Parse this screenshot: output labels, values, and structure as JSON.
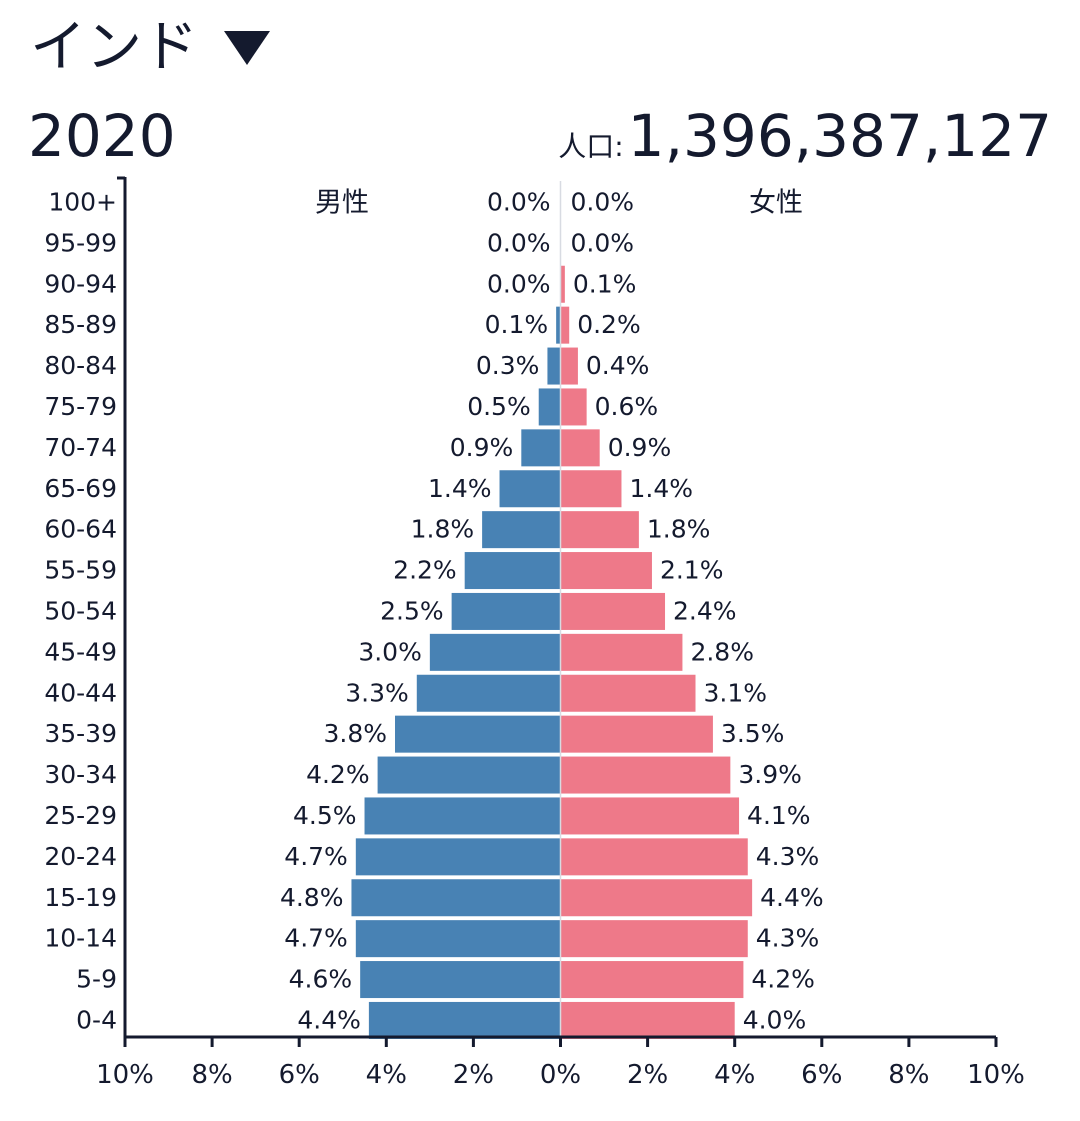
{
  "header": {
    "country": "インド",
    "year": "2020",
    "population_label": "人口:",
    "population_value": "1,396,387,127",
    "dropdown_icon": "triangle-down-icon"
  },
  "colors": {
    "male": "#4882b4",
    "female": "#ee7989",
    "text": "#141a2e"
  },
  "chart_data": {
    "type": "bar",
    "orientation": "horizontal-population-pyramid",
    "categories": [
      "100+",
      "95-99",
      "90-94",
      "85-89",
      "80-84",
      "75-79",
      "70-74",
      "65-69",
      "60-64",
      "55-59",
      "50-54",
      "45-49",
      "40-44",
      "35-39",
      "30-34",
      "25-29",
      "20-24",
      "15-19",
      "10-14",
      "5-9",
      "0-4"
    ],
    "series": [
      {
        "name": "男性",
        "values": [
          0.0,
          0.0,
          0.0,
          0.1,
          0.3,
          0.5,
          0.9,
          1.4,
          1.8,
          2.2,
          2.5,
          3.0,
          3.3,
          3.8,
          4.2,
          4.5,
          4.7,
          4.8,
          4.7,
          4.6,
          4.4
        ],
        "labels": [
          "0.0%",
          "0.0%",
          "0.0%",
          "0.1%",
          "0.3%",
          "0.5%",
          "0.9%",
          "1.4%",
          "1.8%",
          "2.2%",
          "2.5%",
          "3.0%",
          "3.3%",
          "3.8%",
          "4.2%",
          "4.5%",
          "4.7%",
          "4.8%",
          "4.7%",
          "4.6%",
          "4.4%"
        ]
      },
      {
        "name": "女性",
        "values": [
          0.0,
          0.0,
          0.1,
          0.2,
          0.4,
          0.6,
          0.9,
          1.4,
          1.8,
          2.1,
          2.4,
          2.8,
          3.1,
          3.5,
          3.9,
          4.1,
          4.3,
          4.4,
          4.3,
          4.2,
          4.0
        ],
        "labels": [
          "0.0%",
          "0.0%",
          "0.1%",
          "0.2%",
          "0.4%",
          "0.6%",
          "0.9%",
          "1.4%",
          "1.8%",
          "2.1%",
          "2.4%",
          "2.8%",
          "3.1%",
          "3.5%",
          "3.9%",
          "4.1%",
          "4.3%",
          "4.4%",
          "4.3%",
          "4.2%",
          "4.0%"
        ]
      }
    ],
    "xlim": [
      -10,
      10
    ],
    "x_ticks": [
      "10%",
      "8%",
      "6%",
      "4%",
      "2%",
      "0%",
      "2%",
      "4%",
      "6%",
      "8%",
      "10%"
    ],
    "grid": false
  }
}
